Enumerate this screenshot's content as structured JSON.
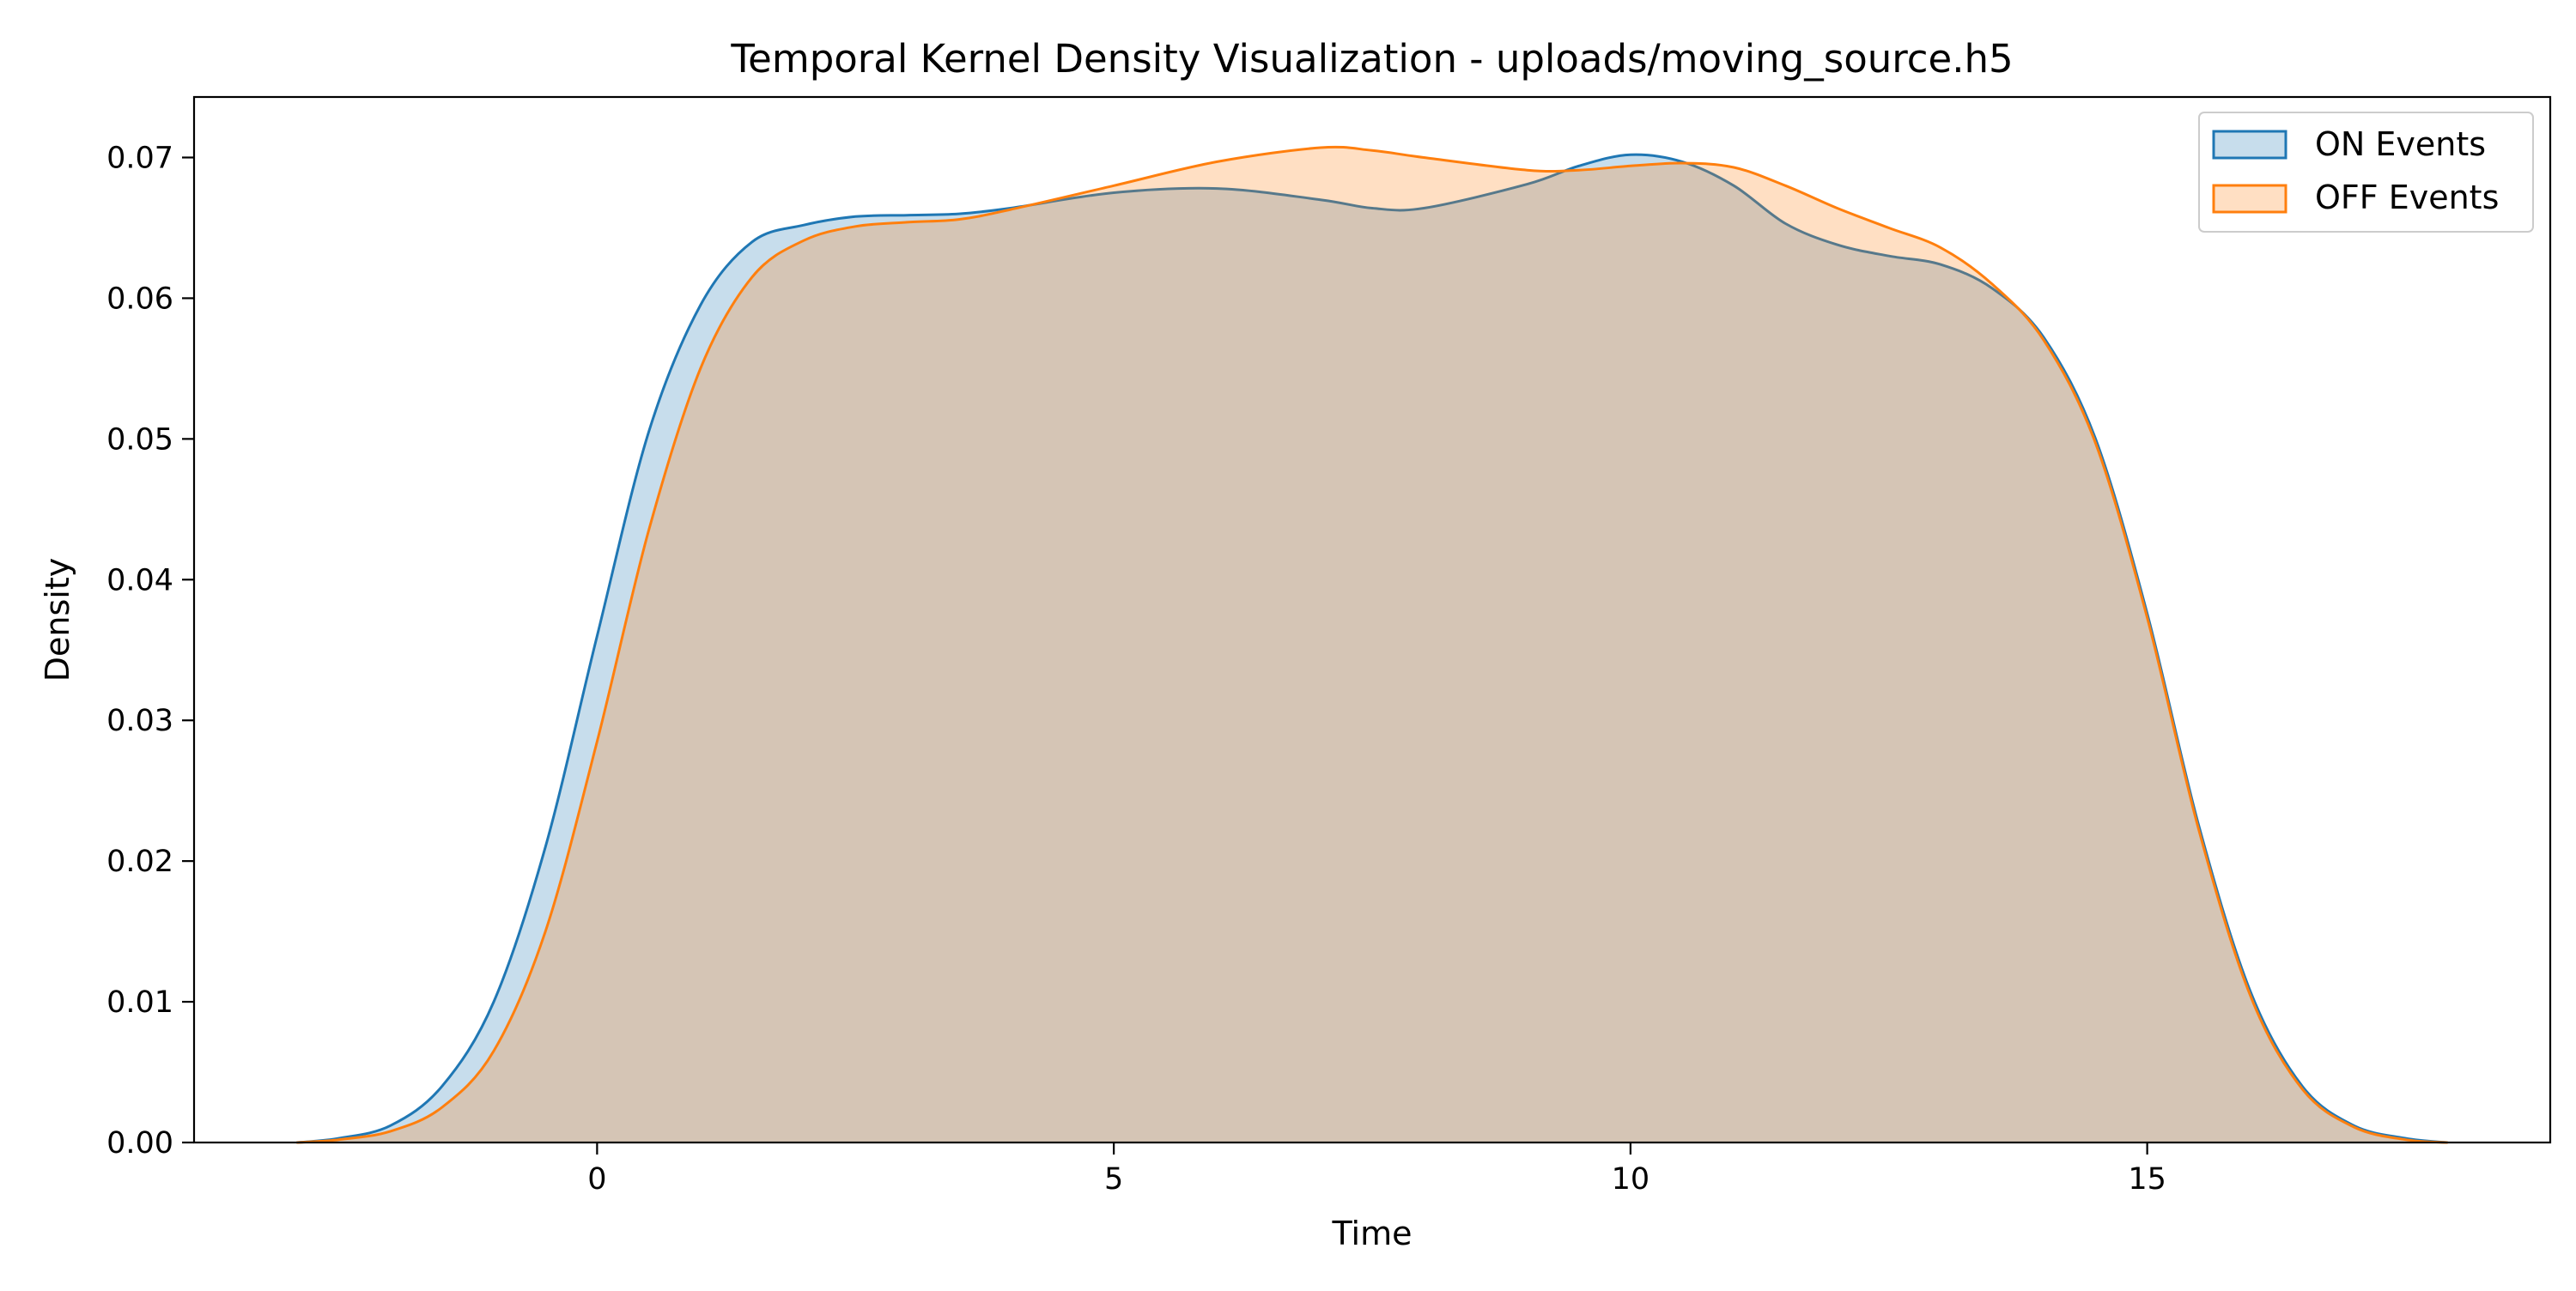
{
  "chart_data": {
    "type": "area",
    "title": "Temporal Kernel Density Visualization - uploads/moving_source.h5",
    "xlabel": "Time",
    "ylabel": "Density",
    "xlim": [
      -3.9,
      18.9
    ],
    "ylim": [
      0,
      0.0743
    ],
    "xticks": [
      0,
      5,
      10,
      15
    ],
    "xtick_labels": [
      "0",
      "5",
      "10",
      "15"
    ],
    "yticks": [
      0,
      0.01,
      0.02,
      0.03,
      0.04,
      0.05,
      0.06,
      0.07
    ],
    "ytick_labels": [
      "0.00",
      "0.01",
      "0.02",
      "0.03",
      "0.04",
      "0.05",
      "0.06",
      "0.07"
    ],
    "grid": false,
    "legend_position": "top-right",
    "series": [
      {
        "name": "ON Events",
        "color": "#1f77b4",
        "fill_color": "#1f77b4",
        "fill_opacity": 0.25,
        "x": [
          -2.9,
          -2.5,
          -2,
          -1.5,
          -1,
          -0.5,
          0,
          0.5,
          1,
          1.5,
          2,
          2.5,
          3,
          3.5,
          4,
          5,
          6,
          7,
          7.5,
          8,
          9,
          9.5,
          10,
          10.5,
          11,
          11.5,
          12,
          12.5,
          13,
          13.5,
          14,
          14.5,
          15,
          15.5,
          16,
          16.5,
          17,
          17.5,
          17.9
        ],
        "values": [
          0.0,
          0.0003,
          0.0012,
          0.004,
          0.01,
          0.021,
          0.036,
          0.0505,
          0.0595,
          0.064,
          0.0652,
          0.0658,
          0.0659,
          0.066,
          0.0664,
          0.0675,
          0.0678,
          0.067,
          0.0664,
          0.0664,
          0.0681,
          0.0694,
          0.0702,
          0.0697,
          0.068,
          0.0653,
          0.0638,
          0.063,
          0.0624,
          0.0607,
          0.0572,
          0.05,
          0.0376,
          0.0225,
          0.0107,
          0.004,
          0.0012,
          0.0003,
          0.0
        ]
      },
      {
        "name": "OFF Events",
        "color": "#ff7f0e",
        "fill_color": "#ff7f0e",
        "fill_opacity": 0.25,
        "x": [
          -2.9,
          -2.5,
          -2,
          -1.5,
          -1,
          -0.5,
          0,
          0.5,
          1,
          1.5,
          2,
          2.5,
          3,
          3.5,
          4,
          5,
          6,
          7,
          7.5,
          8,
          9,
          9.5,
          10,
          10.5,
          11,
          11.5,
          12,
          12.5,
          13,
          13.5,
          14,
          14.5,
          15,
          15.5,
          16,
          16.5,
          17,
          17.5,
          17.9
        ],
        "values": [
          0.0,
          0.0002,
          0.0008,
          0.0025,
          0.0065,
          0.015,
          0.0285,
          0.0435,
          0.055,
          0.0615,
          0.0641,
          0.0651,
          0.0654,
          0.0656,
          0.0663,
          0.068,
          0.0697,
          0.0707,
          0.0705,
          0.07,
          0.0691,
          0.0691,
          0.0694,
          0.0696,
          0.0693,
          0.068,
          0.0664,
          0.065,
          0.0636,
          0.061,
          0.057,
          0.0497,
          0.0373,
          0.0222,
          0.0104,
          0.0038,
          0.0011,
          0.0002,
          0.0
        ]
      }
    ]
  }
}
